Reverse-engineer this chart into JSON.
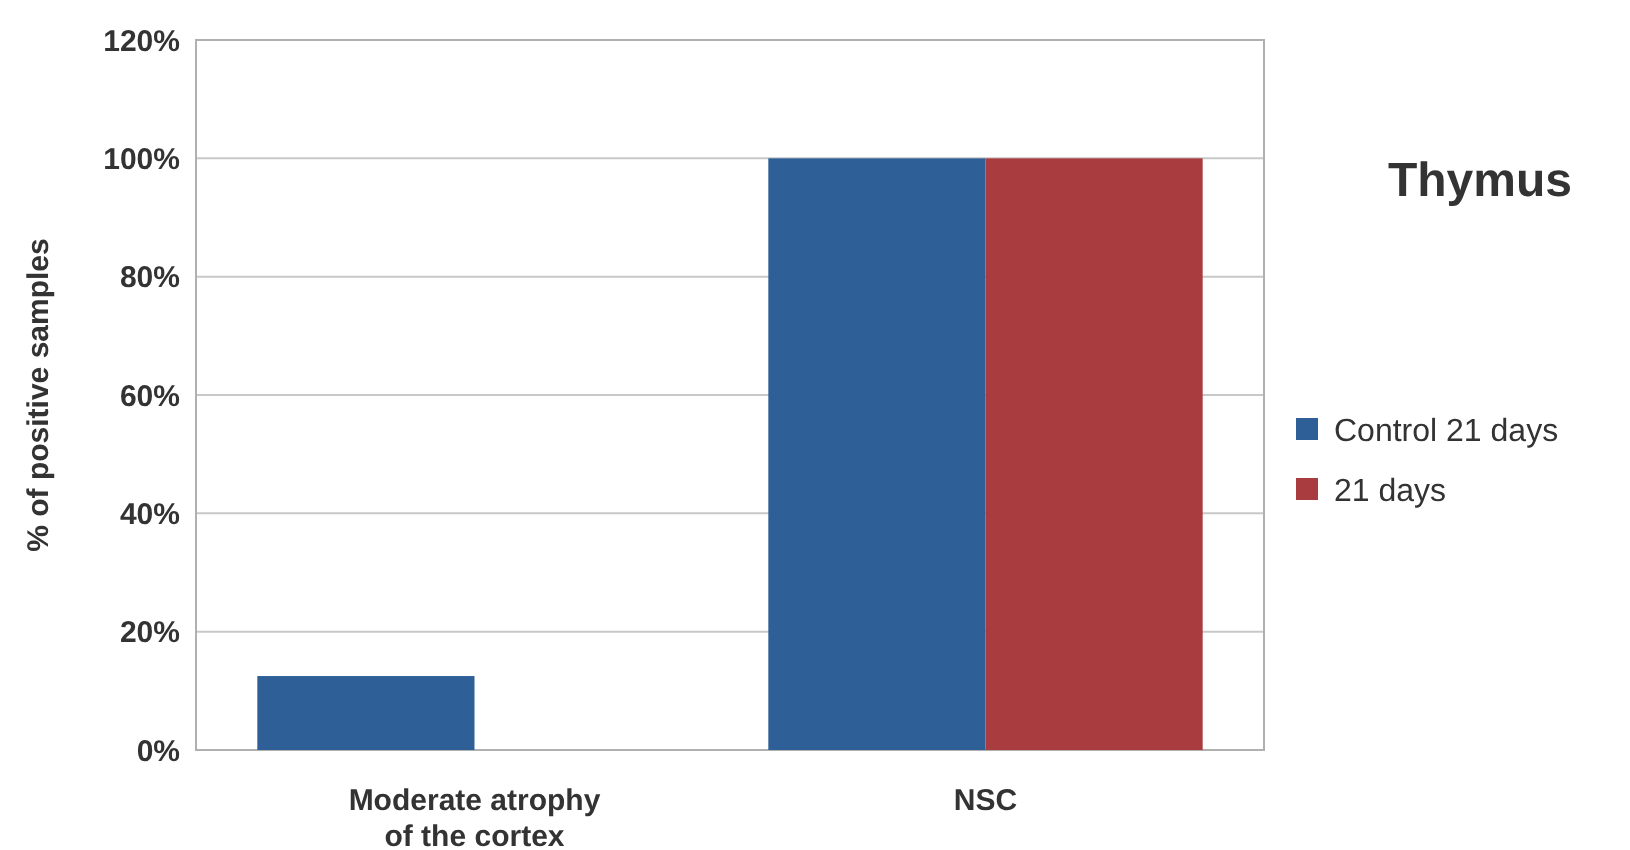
{
  "chart_data": {
    "type": "bar",
    "title": "Thymus",
    "ylabel": "% of positive samples",
    "categories": [
      "Moderate atrophy\nof the cortex",
      "NSC"
    ],
    "series": [
      {
        "name": "Control 21 days",
        "color": "#2e5f96",
        "values": [
          12.5,
          100
        ]
      },
      {
        "name": "21 days",
        "color": "#a83c3e",
        "values": [
          0,
          100
        ]
      }
    ],
    "ylim": [
      0,
      120
    ],
    "yticks": [
      {
        "value": 0,
        "label": "0%"
      },
      {
        "value": 20,
        "label": "20%"
      },
      {
        "value": 40,
        "label": "40%"
      },
      {
        "value": 60,
        "label": "60%"
      },
      {
        "value": 80,
        "label": "80%"
      },
      {
        "value": 100,
        "label": "100%"
      },
      {
        "value": 120,
        "label": "120%"
      }
    ],
    "grid": true,
    "legend": "right"
  }
}
